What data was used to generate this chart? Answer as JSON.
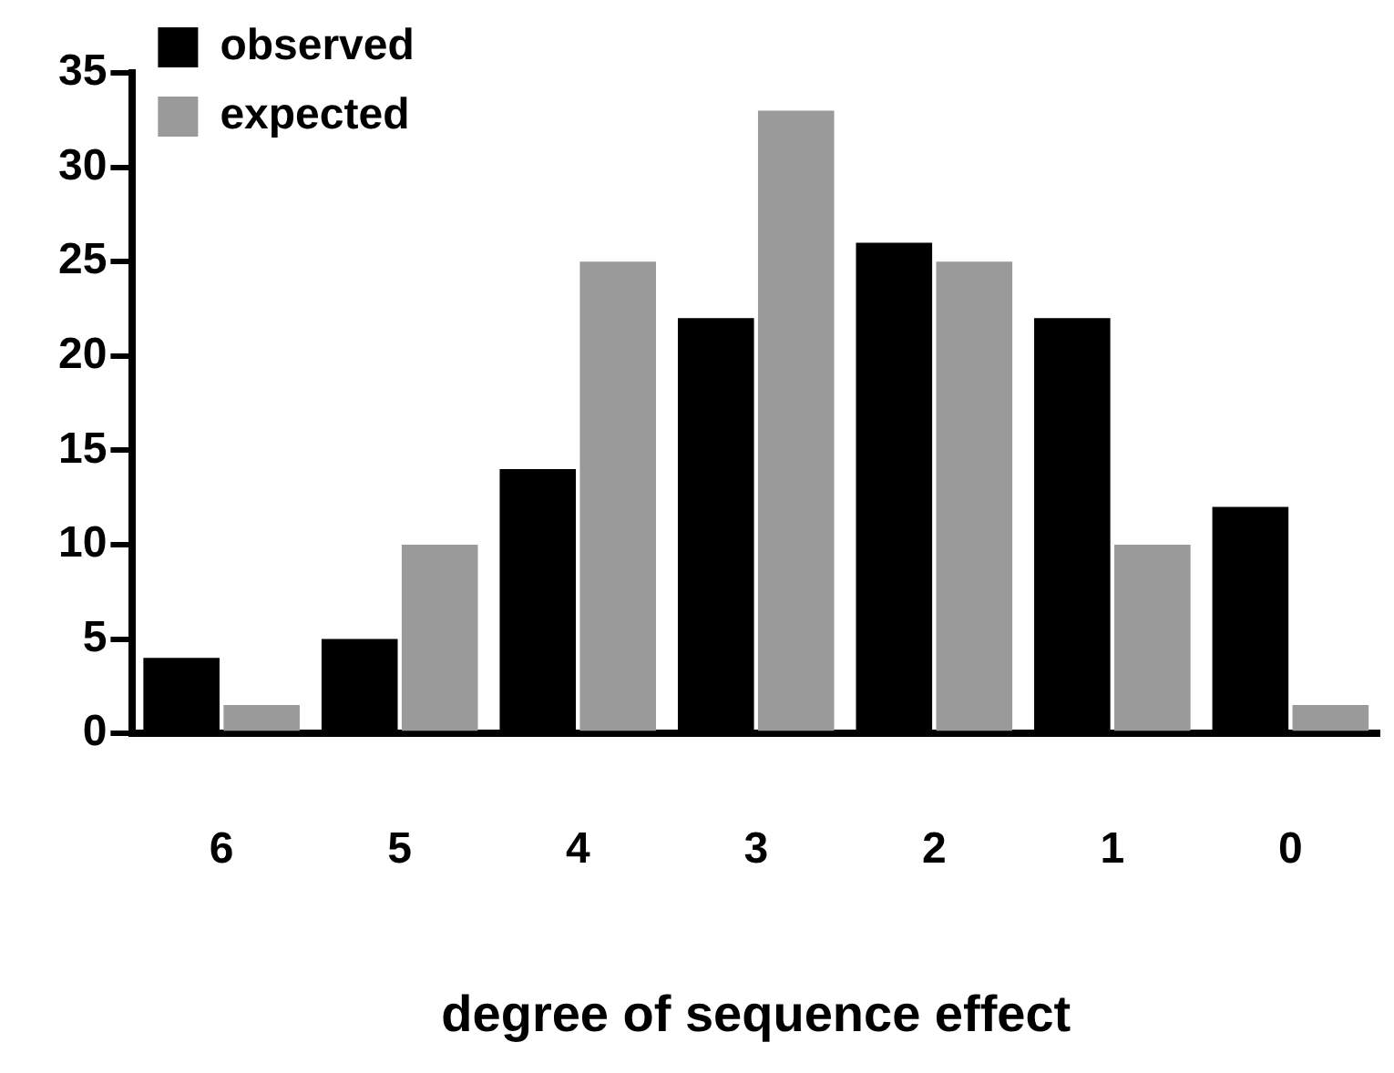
{
  "chart_data": {
    "type": "bar",
    "xlabel": "degree of sequence effect",
    "categories": [
      "6",
      "5",
      "4",
      "3",
      "2",
      "1",
      "0"
    ],
    "series": [
      {
        "name": "observed",
        "color": "#000000",
        "values": [
          4,
          5,
          14,
          22,
          26,
          22,
          12
        ]
      },
      {
        "name": "expected",
        "color": "#9a9a9a",
        "values": [
          1.5,
          10,
          25,
          33,
          25,
          10,
          1.5
        ]
      }
    ],
    "ylim": [
      0,
      35
    ],
    "yticks": [
      0,
      5,
      10,
      15,
      20,
      25,
      30,
      35
    ],
    "grid": false,
    "legend": "top left"
  }
}
